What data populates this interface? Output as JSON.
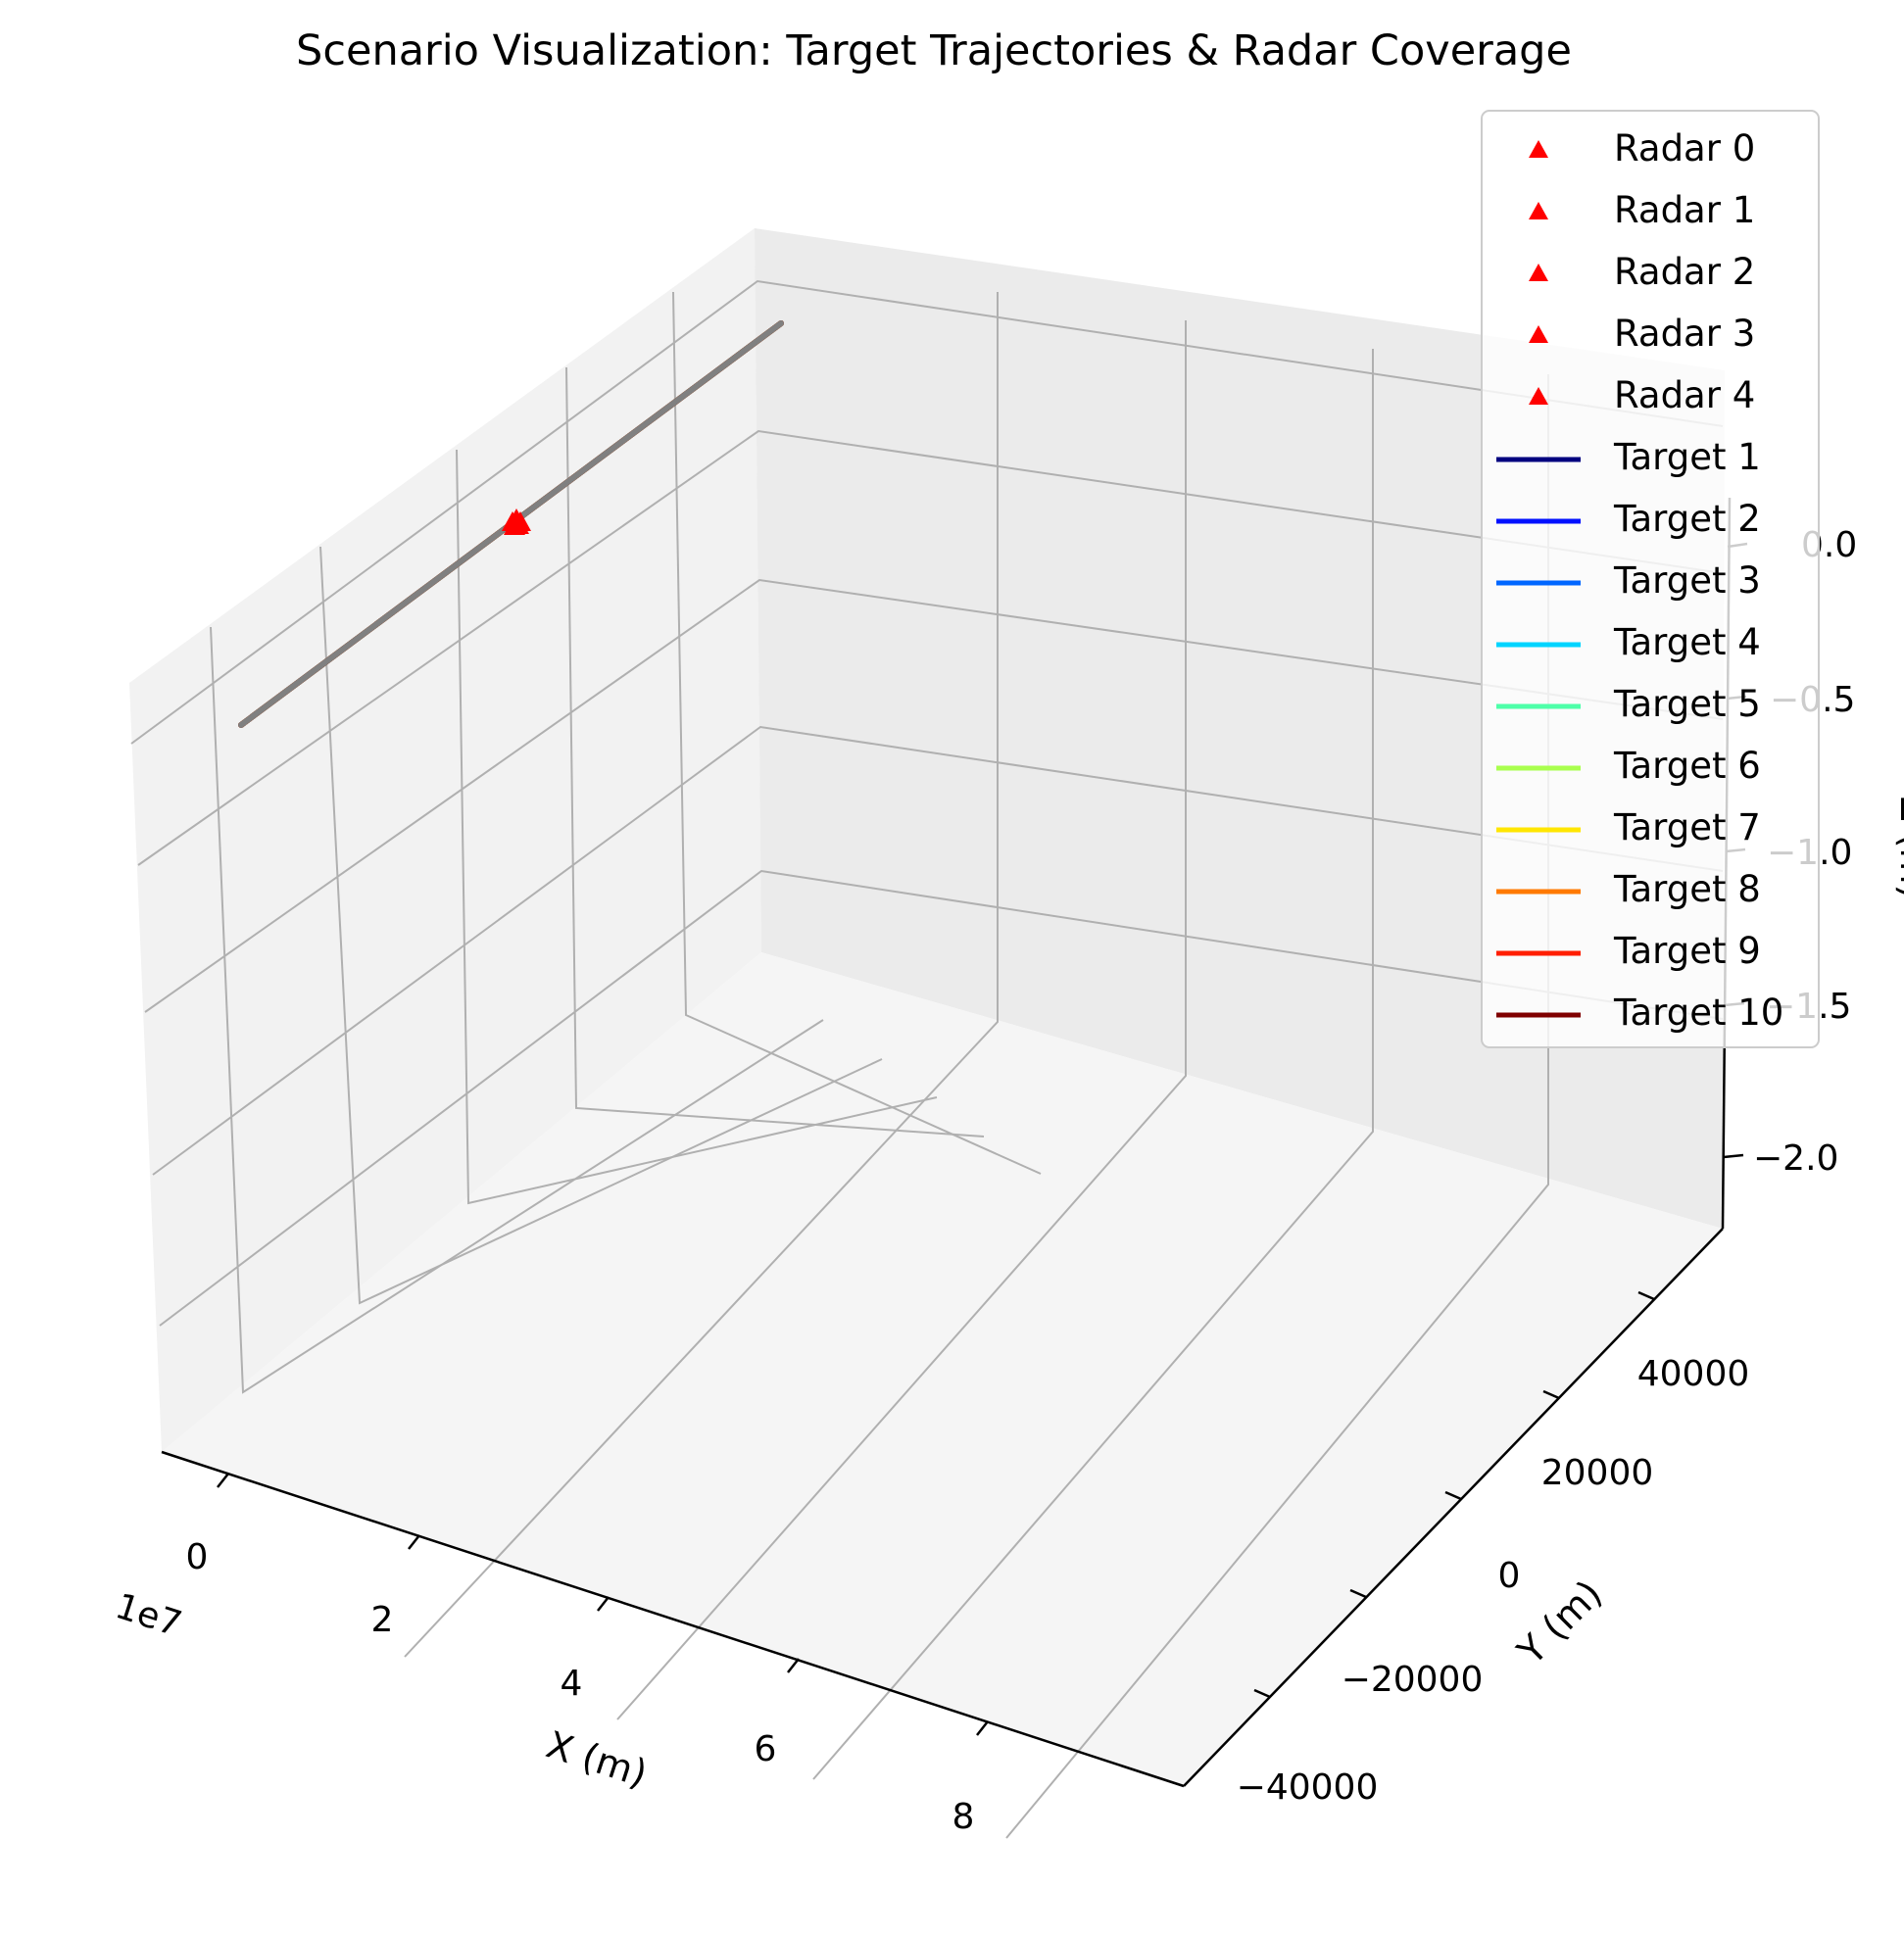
{
  "chart_data": {
    "type": "line",
    "projection": "3d",
    "title": "Scenario Visualization: Target Trajectories & Radar Coverage",
    "xlabel": "X (m)",
    "ylabel": "Y (m)",
    "zlabel": "Z (m)",
    "x_offset_label": "1e7",
    "x_ticks": [
      "0",
      "2",
      "4",
      "6",
      "8"
    ],
    "y_ticks": [
      "−40000",
      "−20000",
      "0",
      "20000",
      "40000"
    ],
    "z_ticks": [
      "0.0",
      "−0.5",
      "−1.0",
      "−1.5",
      "−2.0"
    ],
    "grid": true,
    "legend_position": "top-right",
    "radars": [
      {
        "name": "Radar 0",
        "color": "#ff0000",
        "marker": "triangle"
      },
      {
        "name": "Radar 1",
        "color": "#ff0000",
        "marker": "triangle"
      },
      {
        "name": "Radar 2",
        "color": "#ff0000",
        "marker": "triangle"
      },
      {
        "name": "Radar 3",
        "color": "#ff0000",
        "marker": "triangle"
      },
      {
        "name": "Radar 4",
        "color": "#ff0000",
        "marker": "triangle"
      }
    ],
    "series": [
      {
        "name": "Target 1",
        "color": "#00007f"
      },
      {
        "name": "Target 2",
        "color": "#0010ff"
      },
      {
        "name": "Target 3",
        "color": "#0066ff"
      },
      {
        "name": "Target 4",
        "color": "#00d4ff"
      },
      {
        "name": "Target 5",
        "color": "#4effa9"
      },
      {
        "name": "Target 6",
        "color": "#a9ff4e"
      },
      {
        "name": "Target 7",
        "color": "#ffe600"
      },
      {
        "name": "Target 8",
        "color": "#ff7a00"
      },
      {
        "name": "Target 9",
        "color": "#ff1e00"
      },
      {
        "name": "Target 10",
        "color": "#7f0000"
      }
    ],
    "trajectory_color": "#808080"
  }
}
